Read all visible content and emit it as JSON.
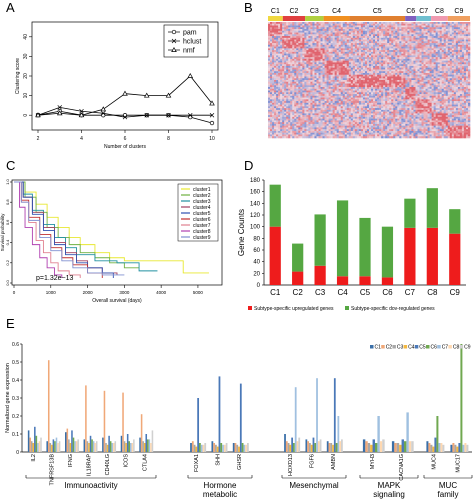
{
  "panels": {
    "a": "A",
    "b": "B",
    "c": "C",
    "d": "D",
    "e": "E"
  },
  "colors": {
    "pam": "#000000",
    "hclust": "#000000",
    "nmf": "#000000",
    "up": "#ee1c1c",
    "down": "#55a742",
    "heat_high": "#e0646e",
    "heat_low": "#5b7ad0",
    "heat_mid": "#f0d8e0"
  },
  "chart_data": [
    {
      "panel": "A",
      "type": "line",
      "title": "",
      "xlabel": "Number of clusters",
      "ylabel": "Clustering score",
      "x": [
        2,
        3,
        4,
        5,
        6,
        7,
        8,
        9,
        10
      ],
      "xticks": [
        "2",
        "4",
        "6",
        "8",
        "10"
      ],
      "yticks": [
        "0",
        "10",
        "20",
        "30",
        "40"
      ],
      "ylim": [
        -5,
        45
      ],
      "series": [
        {
          "name": "pam",
          "marker": "circle",
          "values": [
            0,
            2,
            0,
            0,
            0,
            0,
            0,
            -1,
            -4
          ]
        },
        {
          "name": "hclust",
          "marker": "cross",
          "values": [
            0,
            4,
            2,
            1,
            -1,
            0,
            0,
            0,
            0
          ]
        },
        {
          "name": "nmf",
          "marker": "triangle",
          "values": [
            0,
            1,
            0,
            3,
            11,
            10,
            10,
            20,
            6
          ]
        }
      ],
      "legend_position": "top-right"
    },
    {
      "panel": "B",
      "type": "heatmap",
      "cluster_labels": [
        "C1",
        "C2",
        "C3",
        "C4",
        "C5",
        "C6",
        "C7",
        "C8",
        "C9"
      ],
      "cluster_colors": [
        "#f0d840",
        "#e04040",
        "#b0d040",
        "#f09020",
        "#e08030",
        "#8060c0",
        "#70c0d0",
        "#f09ab0",
        "#f0a060"
      ],
      "cluster_sizes": [
        8,
        12,
        10,
        14,
        30,
        6,
        8,
        9,
        12
      ],
      "color_scale": [
        "#5b7ad0",
        "#f0d8e0",
        "#e0646e"
      ]
    },
    {
      "panel": "C",
      "type": "line",
      "xlabel": "Overall survival (days)",
      "ylabel": "Survival probability",
      "xticks": [
        "0",
        "1000",
        "2000",
        "3000",
        "4000",
        "5000"
      ],
      "yticks": [
        "0.0",
        "0.2",
        "0.4",
        "0.6",
        "0.8",
        "1.0"
      ],
      "xlim": [
        0,
        5600
      ],
      "ylim": [
        0,
        1
      ],
      "annotation": "p=1.32e−13",
      "series": [
        {
          "name": "cluster1",
          "color": "#e8e830",
          "points": [
            [
              0,
              1
            ],
            [
              300,
              0.9
            ],
            [
              600,
              0.78
            ],
            [
              900,
              0.65
            ],
            [
              1200,
              0.55
            ],
            [
              1500,
              0.45
            ],
            [
              1800,
              0.38
            ],
            [
              2200,
              0.3
            ],
            [
              2600,
              0.25
            ],
            [
              3000,
              0.22
            ],
            [
              4200,
              0.22
            ],
            [
              4600,
              0.1
            ],
            [
              5300,
              0.1
            ]
          ]
        },
        {
          "name": "cluster2",
          "color": "#6fb040",
          "points": [
            [
              0,
              1
            ],
            [
              300,
              0.85
            ],
            [
              600,
              0.7
            ],
            [
              900,
              0.55
            ],
            [
              1200,
              0.45
            ],
            [
              1500,
              0.38
            ],
            [
              1800,
              0.3
            ],
            [
              2200,
              0.25
            ],
            [
              2600,
              0.2
            ],
            [
              3000,
              0.15
            ],
            [
              3400,
              0.15
            ]
          ]
        },
        {
          "name": "cluster3",
          "color": "#2090a0",
          "points": [
            [
              0,
              1
            ],
            [
              250,
              0.88
            ],
            [
              500,
              0.72
            ],
            [
              800,
              0.58
            ],
            [
              1100,
              0.45
            ],
            [
              1400,
              0.35
            ],
            [
              1700,
              0.28
            ],
            [
              2200,
              0.22
            ],
            [
              2800,
              0.2
            ],
            [
              3200,
              0.2
            ],
            [
              3400,
              0.12
            ],
            [
              3900,
              0.12
            ]
          ]
        },
        {
          "name": "cluster4",
          "color": "#a04060",
          "points": [
            [
              0,
              1
            ],
            [
              250,
              0.85
            ],
            [
              500,
              0.7
            ],
            [
              800,
              0.55
            ],
            [
              1100,
              0.4
            ],
            [
              1400,
              0.3
            ],
            [
              1700,
              0.22
            ],
            [
              2000,
              0.15
            ],
            [
              2400,
              0.1
            ],
            [
              2800,
              0.08
            ]
          ]
        },
        {
          "name": "cluster5",
          "color": "#3050b0",
          "points": [
            [
              0,
              1
            ],
            [
              250,
              0.85
            ],
            [
              500,
              0.68
            ],
            [
              800,
              0.52
            ],
            [
              1100,
              0.38
            ],
            [
              1400,
              0.28
            ],
            [
              1700,
              0.2
            ],
            [
              2000,
              0.15
            ],
            [
              2400,
              0.1
            ],
            [
              2700,
              0.05
            ]
          ]
        },
        {
          "name": "cluster6",
          "color": "#c03030",
          "points": [
            [
              0,
              1
            ],
            [
              200,
              0.82
            ],
            [
              400,
              0.65
            ],
            [
              700,
              0.48
            ],
            [
              1000,
              0.35
            ],
            [
              1300,
              0.25
            ],
            [
              1600,
              0.18
            ],
            [
              2000,
              0.1
            ],
            [
              2400,
              0.05
            ]
          ]
        },
        {
          "name": "cluster7",
          "color": "#e08090",
          "points": [
            [
              0,
              1
            ],
            [
              200,
              0.8
            ],
            [
              400,
              0.6
            ],
            [
              600,
              0.42
            ],
            [
              800,
              0.3
            ],
            [
              1000,
              0.2
            ],
            [
              1200,
              0.12
            ],
            [
              1500,
              0.08
            ],
            [
              1800,
              0.05
            ]
          ]
        },
        {
          "name": "cluster8",
          "color": "#b040b0",
          "points": [
            [
              0,
              1
            ],
            [
              150,
              0.75
            ],
            [
              300,
              0.55
            ],
            [
              500,
              0.38
            ],
            [
              700,
              0.25
            ],
            [
              900,
              0.15
            ],
            [
              1100,
              0.08
            ],
            [
              1300,
              0.05
            ]
          ]
        },
        {
          "name": "cluster9",
          "color": "#8090d0",
          "points": [
            [
              0,
              1
            ],
            [
              200,
              0.8
            ],
            [
              400,
              0.62
            ],
            [
              700,
              0.45
            ],
            [
              1000,
              0.32
            ],
            [
              1300,
              0.22
            ],
            [
              1600,
              0.15
            ],
            [
              2000,
              0.1
            ],
            [
              2400,
              0.08
            ],
            [
              3000,
              0.08
            ]
          ]
        }
      ],
      "legend_position": "top-right"
    },
    {
      "panel": "D",
      "type": "bar",
      "stacked": true,
      "ylabel": "Gene Counts",
      "categories": [
        "C1",
        "C2",
        "C3",
        "C4",
        "C5",
        "C6",
        "C7",
        "C8",
        "C9"
      ],
      "yticks": [
        "0",
        "20",
        "40",
        "60",
        "80",
        "100",
        "120",
        "140",
        "160",
        "180"
      ],
      "ylim": [
        0,
        180
      ],
      "series": [
        {
          "name": "Subtype-specific upregulated genes",
          "color": "#ee1c1c",
          "values": [
            100,
            23,
            33,
            15,
            15,
            13,
            98,
            98,
            88
          ]
        },
        {
          "name": "Subtype-specific dov-regulated genes",
          "color": "#55a742",
          "values": [
            72,
            48,
            88,
            130,
            100,
            87,
            50,
            68,
            42
          ]
        }
      ],
      "legend_position": "bottom"
    },
    {
      "panel": "E",
      "type": "bar",
      "ylabel": "Normalized gene expression",
      "yticks": [
        "0",
        "0.1",
        "0.2",
        "0.3",
        "0.4",
        "0.5",
        "0.6"
      ],
      "ylim": [
        0,
        0.6
      ],
      "series_names": [
        "C1",
        "C2",
        "C3",
        "C4",
        "C5",
        "C6",
        "C7",
        "C8",
        "C9"
      ],
      "series_colors": [
        "#3a6fa8",
        "#f0a878",
        "#a8a8a8",
        "#f4b840",
        "#4a78b8",
        "#70a850",
        "#a0c0e0",
        "#ffd8b0",
        "#d0d0d0"
      ],
      "groups": [
        {
          "label": "Immunoactivity",
          "genes": [
            {
              "name": "IL2",
              "values": [
                0.12,
                0.08,
                0.06,
                0.05,
                0.14,
                0.09,
                0.05,
                0.06,
                0.08
              ]
            },
            {
              "name": "TNFRSF13B",
              "values": [
                0.06,
                0.51,
                0.05,
                0.04,
                0.07,
                0.06,
                0.08,
                0.05,
                0.06
              ]
            },
            {
              "name": "IFNG",
              "values": [
                0.11,
                0.13,
                0.07,
                0.05,
                0.12,
                0.08,
                0.06,
                0.06,
                0.07
              ]
            },
            {
              "name": "IL18RAP",
              "values": [
                0.07,
                0.37,
                0.06,
                0.05,
                0.09,
                0.07,
                0.06,
                0.05,
                0.06
              ]
            },
            {
              "name": "CD40LG",
              "values": [
                0.08,
                0.34,
                0.05,
                0.04,
                0.09,
                0.06,
                0.05,
                0.05,
                0.06
              ]
            },
            {
              "name": "ICOS",
              "values": [
                0.09,
                0.33,
                0.06,
                0.05,
                0.1,
                0.06,
                0.05,
                0.05,
                0.07
              ]
            },
            {
              "name": "CTLA4",
              "values": [
                0.08,
                0.21,
                0.06,
                0.05,
                0.1,
                0.07,
                0.07,
                0.05,
                0.12
              ]
            }
          ]
        },
        {
          "label": "Hormone metabolic",
          "genes": [
            {
              "name": "FOXA1",
              "values": [
                0.05,
                0.06,
                0.04,
                0.03,
                0.3,
                0.05,
                0.04,
                0.04,
                0.05
              ]
            },
            {
              "name": "SHH",
              "values": [
                0.06,
                0.05,
                0.04,
                0.03,
                0.42,
                0.05,
                0.04,
                0.04,
                0.05
              ]
            },
            {
              "name": "GHSR",
              "values": [
                0.05,
                0.05,
                0.04,
                0.03,
                0.38,
                0.05,
                0.04,
                0.04,
                0.05
              ]
            }
          ]
        },
        {
          "label": "Mesenchymal",
          "genes": [
            {
              "name": "HOXD13",
              "values": [
                0.1,
                0.06,
                0.05,
                0.04,
                0.08,
                0.05,
                0.36,
                0.06,
                0.08
              ]
            },
            {
              "name": "FGF6",
              "values": [
                0.07,
                0.06,
                0.05,
                0.04,
                0.08,
                0.05,
                0.41,
                0.06,
                0.07
              ]
            },
            {
              "name": "AMBN",
              "values": [
                0.06,
                0.05,
                0.05,
                0.04,
                0.41,
                0.05,
                0.2,
                0.06,
                0.07
              ]
            }
          ]
        },
        {
          "label": "MAPK signaling",
          "genes": [
            {
              "name": "MYH3",
              "values": [
                0.07,
                0.06,
                0.05,
                0.04,
                0.07,
                0.05,
                0.2,
                0.06,
                0.07
              ]
            },
            {
              "name": "CACNA1G",
              "values": [
                0.06,
                0.05,
                0.05,
                0.04,
                0.07,
                0.06,
                0.22,
                0.06,
                0.06
              ]
            }
          ]
        },
        {
          "label": "MUC family",
          "genes": [
            {
              "name": "MUC4",
              "values": [
                0.06,
                0.05,
                0.04,
                0.03,
                0.08,
                0.2,
                0.05,
                0.05,
                0.04
              ]
            },
            {
              "name": "MUC17",
              "values": [
                0.04,
                0.05,
                0.04,
                0.03,
                0.05,
                0.6,
                0.04,
                0.05,
                0.04
              ]
            }
          ]
        }
      ],
      "legend_position": "top-right"
    }
  ]
}
